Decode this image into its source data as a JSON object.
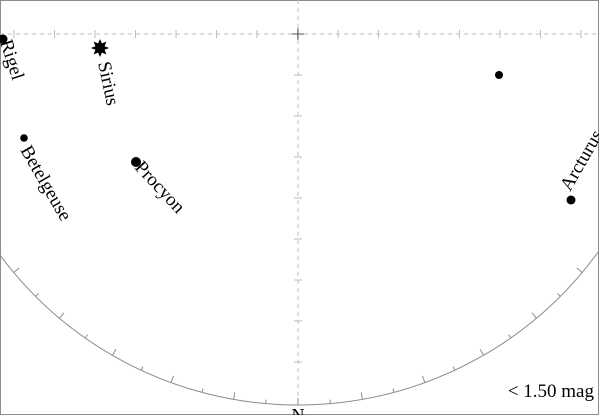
{
  "north_label": "N",
  "magnitude_note": "< 1.50 mag",
  "stars": [
    {
      "name": "Rigel",
      "symbol": "dot"
    },
    {
      "name": "Sirius",
      "symbol": "star"
    },
    {
      "name": "Betelgeuse",
      "symbol": "dot"
    },
    {
      "name": "Procyon",
      "symbol": "dot"
    },
    {
      "name": "",
      "symbol": "dot"
    },
    {
      "name": "Arcturus",
      "symbol": "dot"
    }
  ],
  "colors": {
    "ink": "#000000",
    "grid": "#bdbdbd",
    "horizon": "#8c8c8c",
    "background": "#ffffff"
  }
}
